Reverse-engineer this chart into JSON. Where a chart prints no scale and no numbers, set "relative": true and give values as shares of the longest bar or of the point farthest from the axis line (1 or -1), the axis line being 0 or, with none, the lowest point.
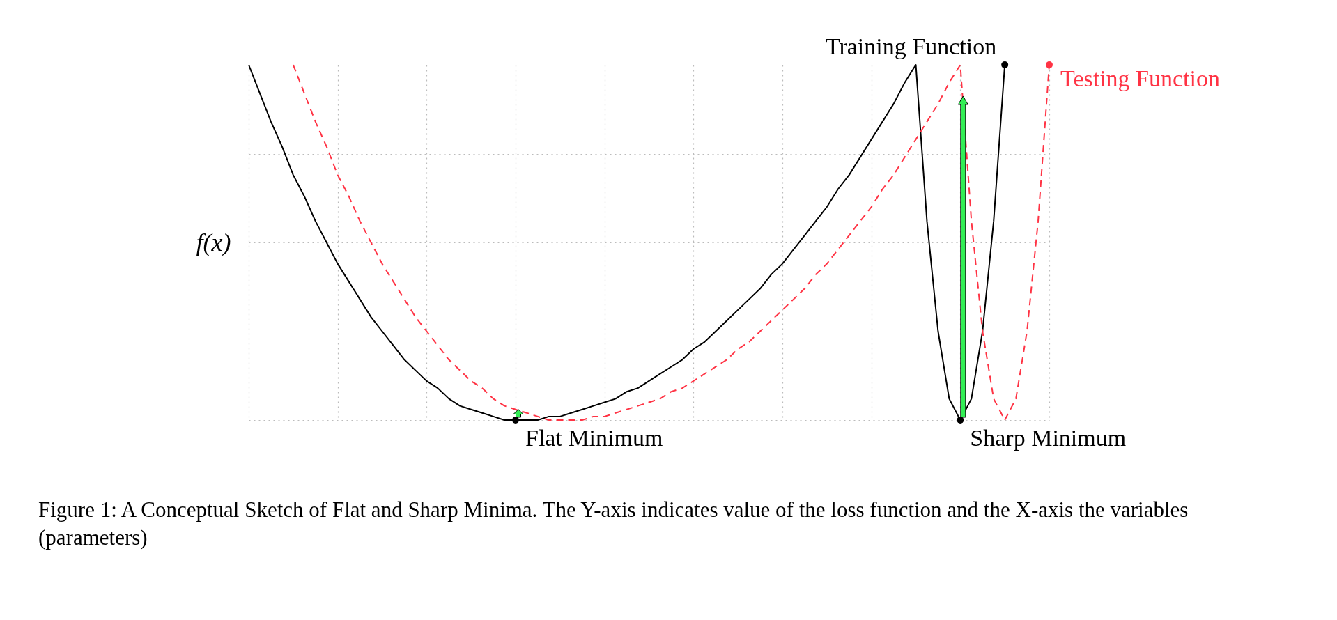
{
  "chart_data": {
    "type": "line",
    "relative": true,
    "grid": true,
    "legend": "top right",
    "ylabel": "f(x)",
    "categories": [
      null,
      null,
      null,
      null,
      null,
      null,
      null,
      null,
      null,
      null,
      null,
      null,
      null,
      null,
      null,
      null,
      null,
      null,
      null,
      null,
      null,
      null,
      null,
      null,
      null,
      null,
      null,
      null,
      null,
      null,
      null,
      null,
      null,
      null,
      null,
      null,
      null,
      null,
      null,
      null,
      null,
      null,
      null,
      null,
      null,
      null,
      null,
      null,
      null,
      null,
      null,
      null,
      null,
      null,
      null,
      null,
      null,
      null,
      null,
      null,
      null,
      null,
      null,
      null,
      null,
      null,
      null,
      null,
      null,
      null,
      null,
      null,
      null
    ],
    "series": [
      {
        "name": "Training Function",
        "color": "#000000",
        "line_style": "solid",
        "values": [
          1,
          0.92,
          0.84,
          0.77,
          0.69,
          0.63,
          0.56,
          0.5,
          0.44,
          0.39,
          0.34,
          0.29,
          0.25,
          0.21,
          0.17,
          0.14,
          0.11,
          0.09,
          0.06,
          0.04,
          0.03,
          0.02,
          0.01,
          0,
          0,
          0,
          0,
          0.01,
          0.01,
          0.02,
          0.03,
          0.04,
          0.05,
          0.06,
          0.08,
          0.09,
          0.11,
          0.13,
          0.15,
          0.17,
          0.2,
          0.22,
          0.25,
          0.28,
          0.31,
          0.34,
          0.37,
          0.41,
          0.44,
          0.48,
          0.52,
          0.56,
          0.6,
          0.65,
          0.69,
          0.74,
          0.79,
          0.84,
          0.89,
          0.95,
          1,
          0.56,
          0.25,
          0.06,
          0,
          0.06,
          0.25,
          0.56,
          1,
          null,
          null,
          null,
          null
        ]
      },
      {
        "name": "Testing Function",
        "color": "#ff3344",
        "line_style": "dashed",
        "values": [
          null,
          null,
          null,
          null,
          1,
          0.92,
          0.84,
          0.77,
          0.69,
          0.63,
          0.56,
          0.5,
          0.44,
          0.39,
          0.34,
          0.29,
          0.25,
          0.21,
          0.17,
          0.14,
          0.11,
          0.09,
          0.06,
          0.04,
          0.03,
          0.02,
          0.01,
          0,
          0,
          0,
          0,
          0.01,
          0.01,
          0.02,
          0.03,
          0.04,
          0.05,
          0.06,
          0.08,
          0.09,
          0.11,
          0.13,
          0.15,
          0.17,
          0.2,
          0.22,
          0.25,
          0.28,
          0.31,
          0.34,
          0.37,
          0.41,
          0.44,
          0.48,
          0.52,
          0.56,
          0.6,
          0.65,
          0.69,
          0.74,
          0.79,
          0.84,
          0.89,
          0.95,
          1,
          0.56,
          0.25,
          0.06,
          0,
          0.06,
          0.25,
          0.56,
          1
        ]
      }
    ],
    "annotations": [
      "Flat Minimum",
      "Sharp Minimum",
      "Figure 1: A Conceptual Sketch of Flat and Sharp Minima. The Y-axis indicates value of the loss function and the X-axis the variables (parameters)"
    ]
  }
}
